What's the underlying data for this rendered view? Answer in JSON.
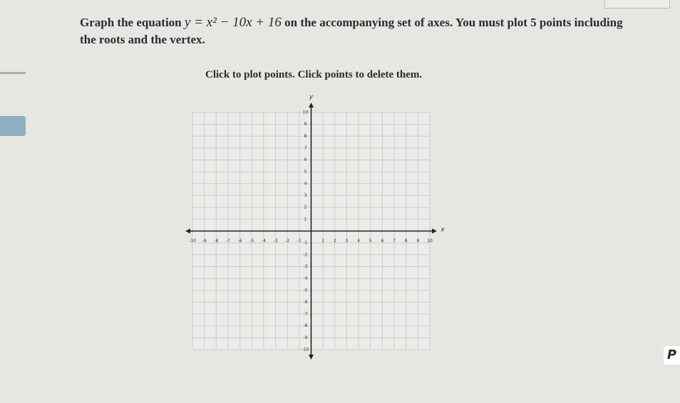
{
  "question": {
    "prefix": "Graph the equation",
    "equation": "y = x² − 10x + 16",
    "suffix_line1": "on the accompanying set of axes. You must plot 5 points including",
    "suffix_line2": "the roots and the vertex."
  },
  "instruction": "Click to plot points. Click points to delete them.",
  "graph": {
    "x_label": "x",
    "y_label": "y",
    "xlim": [
      -10,
      10
    ],
    "ylim": [
      -10,
      10
    ],
    "xticks": [
      -10,
      -9,
      -8,
      -7,
      -6,
      -5,
      -4,
      -3,
      -2,
      -1,
      1,
      2,
      3,
      4,
      5,
      6,
      7,
      8,
      9,
      10
    ],
    "yticks": [
      -10,
      -9,
      -8,
      -7,
      -6,
      -5,
      -4,
      -3,
      -2,
      -1,
      1,
      2,
      3,
      4,
      5,
      6,
      7,
      8,
      9,
      10
    ],
    "grid": true
  },
  "toolbar": {
    "button": "P"
  }
}
